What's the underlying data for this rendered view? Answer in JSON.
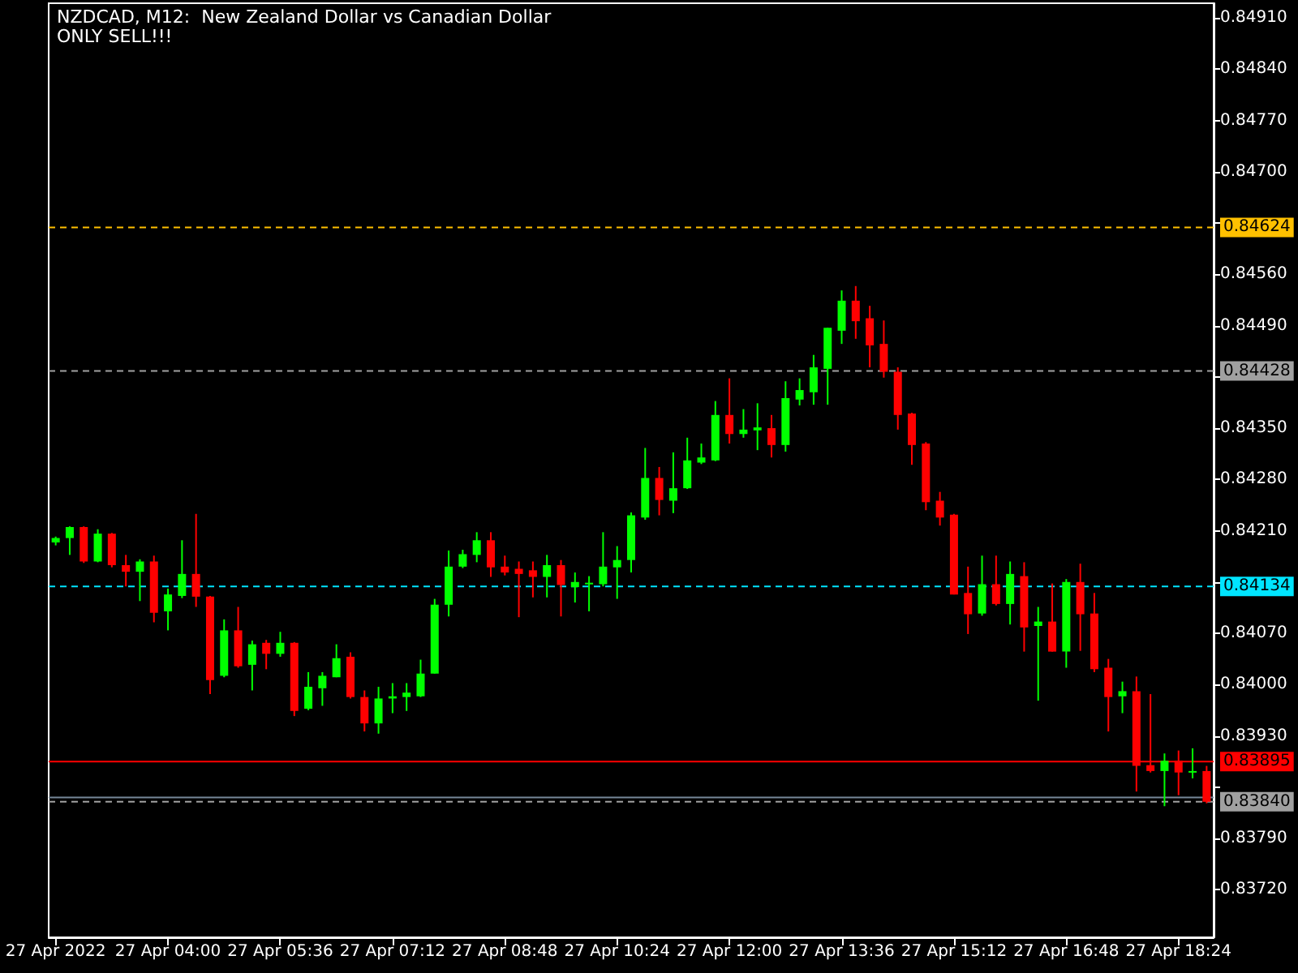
{
  "chart_data": {
    "type": "candlestick",
    "title": "NZDCAD, M12:  New Zealand Dollar vs Canadian Dollar",
    "subtitle": "ONLY SELL!!!",
    "categories": [
      "27 Apr 2022",
      null,
      null,
      null,
      null,
      null,
      null,
      null,
      "27 Apr 04:00",
      null,
      null,
      null,
      null,
      null,
      null,
      null,
      "27 Apr 05:36",
      null,
      null,
      null,
      null,
      null,
      null,
      null,
      "27 Apr 07:12",
      null,
      null,
      null,
      null,
      null,
      null,
      null,
      "27 Apr 08:48",
      null,
      null,
      null,
      null,
      null,
      null,
      null,
      "27 Apr 10:24",
      null,
      null,
      null,
      null,
      null,
      null,
      null,
      "27 Apr 12:00",
      null,
      null,
      null,
      null,
      null,
      null,
      null,
      "27 Apr 13:36",
      null,
      null,
      null,
      null,
      null,
      null,
      null,
      "27 Apr 15:12",
      null,
      null,
      null,
      null,
      null,
      null,
      null,
      "27 Apr 16:48",
      null,
      null,
      null,
      null,
      null,
      null,
      null,
      "27 Apr 18:24",
      null,
      null
    ],
    "ohlc": [
      [
        0.84194,
        0.84202,
        0.8419,
        0.842
      ],
      [
        0.842,
        0.84216,
        0.84177,
        0.84215
      ],
      [
        0.84215,
        0.84216,
        0.84166,
        0.84168
      ],
      [
        0.84168,
        0.84212,
        0.84167,
        0.84206
      ],
      [
        0.84206,
        0.84207,
        0.8416,
        0.84163
      ],
      [
        0.84163,
        0.84177,
        0.84134,
        0.84154
      ],
      [
        0.84154,
        0.84171,
        0.84114,
        0.84168
      ],
      [
        0.84168,
        0.84176,
        0.84085,
        0.84098
      ],
      [
        0.841,
        0.84131,
        0.84074,
        0.84123
      ],
      [
        0.84121,
        0.84197,
        0.84118,
        0.84151
      ],
      [
        0.84151,
        0.84233,
        0.84106,
        0.8412
      ],
      [
        0.8412,
        0.84121,
        0.83987,
        0.84006
      ],
      [
        0.84012,
        0.84089,
        0.8401,
        0.84074
      ],
      [
        0.84074,
        0.84106,
        0.84023,
        0.84025
      ],
      [
        0.84027,
        0.8406,
        0.83992,
        0.84055
      ],
      [
        0.84057,
        0.84061,
        0.84021,
        0.84042
      ],
      [
        0.84042,
        0.84072,
        0.84038,
        0.84057
      ],
      [
        0.84057,
        0.84058,
        0.83957,
        0.83964
      ],
      [
        0.83967,
        0.84017,
        0.83965,
        0.83997
      ],
      [
        0.83995,
        0.84017,
        0.83971,
        0.84012
      ],
      [
        0.8401,
        0.84055,
        0.8401,
        0.84036
      ],
      [
        0.84038,
        0.84044,
        0.83981,
        0.83983
      ],
      [
        0.83983,
        0.83992,
        0.83936,
        0.83947
      ],
      [
        0.83947,
        0.83997,
        0.83933,
        0.83981
      ],
      [
        0.83981,
        0.84002,
        0.83961,
        0.83984
      ],
      [
        0.83983,
        0.84002,
        0.83964,
        0.83989
      ],
      [
        0.83984,
        0.84034,
        0.83983,
        0.84015
      ],
      [
        0.84015,
        0.84117,
        0.84015,
        0.84109
      ],
      [
        0.84109,
        0.84183,
        0.84093,
        0.84161
      ],
      [
        0.84161,
        0.84184,
        0.84159,
        0.84178
      ],
      [
        0.84177,
        0.84208,
        0.84167,
        0.84197
      ],
      [
        0.84197,
        0.84208,
        0.84147,
        0.8416
      ],
      [
        0.84161,
        0.84176,
        0.84149,
        0.84153
      ],
      [
        0.84158,
        0.84168,
        0.84092,
        0.84151
      ],
      [
        0.84156,
        0.84168,
        0.84119,
        0.84147
      ],
      [
        0.84147,
        0.84177,
        0.84119,
        0.84163
      ],
      [
        0.84163,
        0.8417,
        0.84093,
        0.84136
      ],
      [
        0.84133,
        0.84153,
        0.84112,
        0.8414
      ],
      [
        0.84137,
        0.84148,
        0.841,
        0.84139
      ],
      [
        0.84137,
        0.84208,
        0.84134,
        0.84161
      ],
      [
        0.8416,
        0.84189,
        0.84117,
        0.8417
      ],
      [
        0.8417,
        0.84235,
        0.84153,
        0.84231
      ],
      [
        0.84228,
        0.84323,
        0.84225,
        0.84282
      ],
      [
        0.84282,
        0.84297,
        0.84231,
        0.84252
      ],
      [
        0.84251,
        0.84317,
        0.84234,
        0.84268
      ],
      [
        0.84268,
        0.84337,
        0.84267,
        0.84306
      ],
      [
        0.84303,
        0.84329,
        0.84301,
        0.8431
      ],
      [
        0.84306,
        0.84387,
        0.84305,
        0.84368
      ],
      [
        0.84368,
        0.84418,
        0.84329,
        0.84342
      ],
      [
        0.84342,
        0.84376,
        0.84337,
        0.84348
      ],
      [
        0.84347,
        0.84384,
        0.8432,
        0.84351
      ],
      [
        0.8435,
        0.84368,
        0.8431,
        0.84327
      ],
      [
        0.84327,
        0.84414,
        0.84318,
        0.84391
      ],
      [
        0.84389,
        0.84418,
        0.84381,
        0.84402
      ],
      [
        0.84399,
        0.8445,
        0.84382,
        0.84433
      ],
      [
        0.84431,
        0.84487,
        0.84382,
        0.84487
      ],
      [
        0.84483,
        0.84538,
        0.84465,
        0.84524
      ],
      [
        0.84524,
        0.84544,
        0.84472,
        0.84496
      ],
      [
        0.845,
        0.84517,
        0.84433,
        0.84463
      ],
      [
        0.84465,
        0.84497,
        0.84419,
        0.84427
      ],
      [
        0.84427,
        0.84433,
        0.84348,
        0.84368
      ],
      [
        0.8437,
        0.84371,
        0.843,
        0.84327
      ],
      [
        0.84329,
        0.84331,
        0.84238,
        0.84249
      ],
      [
        0.84251,
        0.84263,
        0.84217,
        0.84228
      ],
      [
        0.84232,
        0.84233,
        0.84123,
        0.84123
      ],
      [
        0.84125,
        0.84161,
        0.84069,
        0.84096
      ],
      [
        0.84097,
        0.84176,
        0.84094,
        0.84137
      ],
      [
        0.84137,
        0.84176,
        0.84108,
        0.8411
      ],
      [
        0.8411,
        0.84168,
        0.84082,
        0.84151
      ],
      [
        0.84148,
        0.84167,
        0.84045,
        0.84078
      ],
      [
        0.8408,
        0.84106,
        0.83978,
        0.84086
      ],
      [
        0.84086,
        0.84138,
        0.84045,
        0.84045
      ],
      [
        0.84045,
        0.84144,
        0.84023,
        0.8414
      ],
      [
        0.8414,
        0.84165,
        0.84046,
        0.84096
      ],
      [
        0.84097,
        0.84125,
        0.84017,
        0.84021
      ],
      [
        0.84023,
        0.84035,
        0.83936,
        0.83983
      ],
      [
        0.83984,
        0.84004,
        0.83961,
        0.83991
      ],
      [
        0.83991,
        0.84011,
        0.83854,
        0.83889
      ],
      [
        0.8389,
        0.83987,
        0.8388,
        0.83882
      ],
      [
        0.83882,
        0.83906,
        0.83834,
        0.83896
      ],
      [
        0.83896,
        0.8391,
        0.83849,
        0.8388
      ],
      [
        0.8388,
        0.83913,
        0.83872,
        0.83882
      ],
      [
        0.83882,
        0.83889,
        0.83838,
        0.8384
      ]
    ],
    "colors": [
      "#00ff00",
      "#00ff00",
      "#ff0000",
      "#00ff00",
      "#ff0000",
      "#ff0000",
      "#00ff00",
      "#ff0000",
      "#00ff00",
      "#00ff00",
      "#ff0000",
      "#ff0000",
      "#00ff00",
      "#ff0000",
      "#00ff00",
      "#ff0000",
      "#00ff00",
      "#ff0000",
      "#00ff00",
      "#00ff00",
      "#00ff00",
      "#ff0000",
      "#ff0000",
      "#00ff00",
      "#00ff00",
      "#00ff00",
      "#00ff00",
      "#00ff00",
      "#00ff00",
      "#00ff00",
      "#00ff00",
      "#ff0000",
      "#ff0000",
      "#ff0000",
      "#ff0000",
      "#00ff00",
      "#ff0000",
      "#00ff00",
      "#00ff00",
      "#00ff00",
      "#00ff00",
      "#00ff00",
      "#00ff00",
      "#ff0000",
      "#00ff00",
      "#00ff00",
      "#00ff00",
      "#00ff00",
      "#ff0000",
      "#00ff00",
      "#00ff00",
      "#ff0000",
      "#00ff00",
      "#00ff00",
      "#00ff00",
      "#00ff00",
      "#00ff00",
      "#ff0000",
      "#ff0000",
      "#ff0000",
      "#ff0000",
      "#ff0000",
      "#ff0000",
      "#ff0000",
      "#ff0000",
      "#ff0000",
      "#00ff00",
      "#ff0000",
      "#00ff00",
      "#ff0000",
      "#00ff00",
      "#ff0000",
      "#00ff00",
      "#ff0000",
      "#ff0000",
      "#ff0000",
      "#00ff00",
      "#ff0000",
      "#ff0000",
      "#00ff00",
      "#ff0000",
      "#00ff00",
      "#ff0000"
    ],
    "ylim": [
      0.83655,
      0.8493
    ],
    "yticks": [
      {
        "value": 0.8491,
        "label": "0.84910"
      },
      {
        "value": 0.8484,
        "label": "0.84840"
      },
      {
        "value": 0.8477,
        "label": "0.84770"
      },
      {
        "value": 0.847,
        "label": "0.84700"
      },
      {
        "value": 0.8463,
        "label": null
      },
      {
        "value": 0.8456,
        "label": "0.84560"
      },
      {
        "value": 0.8449,
        "label": "0.84490"
      },
      {
        "value": 0.8442,
        "label": null
      },
      {
        "value": 0.8435,
        "label": "0.84350"
      },
      {
        "value": 0.8428,
        "label": "0.84280"
      },
      {
        "value": 0.8421,
        "label": "0.84210"
      },
      {
        "value": 0.8414,
        "label": null
      },
      {
        "value": 0.8407,
        "label": "0.84070"
      },
      {
        "value": 0.84,
        "label": "0.84000"
      },
      {
        "value": 0.8393,
        "label": "0.83930"
      },
      {
        "value": 0.8386,
        "label": null
      },
      {
        "value": 0.8379,
        "label": "0.83790"
      },
      {
        "value": 0.8372,
        "label": "0.83720"
      }
    ],
    "ref_lines": [
      {
        "axis": "y",
        "value": 0.84624,
        "label": "0.84624",
        "color": "#ffc000",
        "line_style": "dashed"
      },
      {
        "axis": "y",
        "value": 0.84428,
        "label": "0.84428",
        "color": "#a0a0a0",
        "line_style": "dashed"
      },
      {
        "axis": "y",
        "value": 0.84134,
        "label": "0.84134",
        "color": "#00e5ff",
        "line_style": "dashed"
      },
      {
        "axis": "y",
        "value": 0.83895,
        "label": "0.83895",
        "color": "#ff0000",
        "line_style": "solid"
      },
      {
        "axis": "y",
        "value": 0.83846,
        "label": null,
        "color": "#778899",
        "line_style": "solid"
      },
      {
        "axis": "y",
        "value": 0.8384,
        "label": "0.83840",
        "color": "#a0a0a0",
        "line_style": "dashed"
      }
    ],
    "grid": false
  }
}
